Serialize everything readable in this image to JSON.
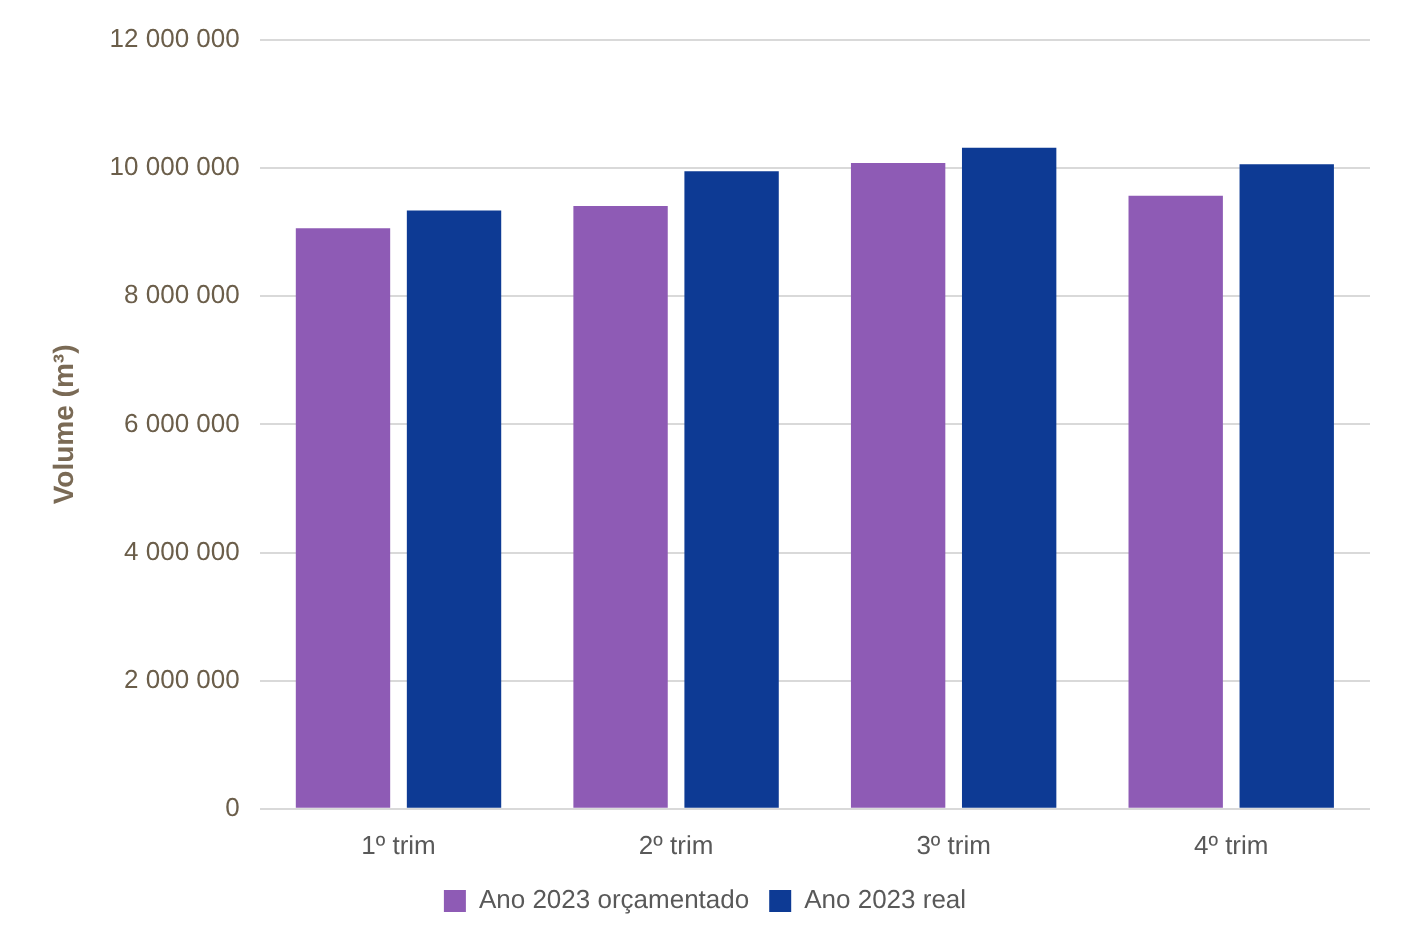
{
  "chart_data": {
    "type": "bar",
    "ylabel": "Volume (m³)",
    "categories": [
      "1º trim",
      "2º trim",
      "3º trim",
      "4º trim"
    ],
    "series": [
      {
        "name": "Ano 2023 orçamentado",
        "color": "#8e5bb5",
        "values": [
          9060000,
          9410000,
          10080000,
          9570000
        ]
      },
      {
        "name": "Ano 2023 real",
        "color": "#0d3a94",
        "values": [
          9340000,
          9950000,
          10320000,
          10060000
        ]
      }
    ],
    "ylim": [
      0,
      12000000
    ],
    "yticks": [
      {
        "value": 0,
        "label": "0"
      },
      {
        "value": 2000000,
        "label": "2 000 000"
      },
      {
        "value": 4000000,
        "label": "4 000 000"
      },
      {
        "value": 6000000,
        "label": "6 000 000"
      },
      {
        "value": 8000000,
        "label": "8 000 000"
      },
      {
        "value": 10000000,
        "label": "10 000 000"
      },
      {
        "value": 12000000,
        "label": "12 000 000"
      }
    ],
    "grid": "y",
    "legend": "bottom"
  }
}
